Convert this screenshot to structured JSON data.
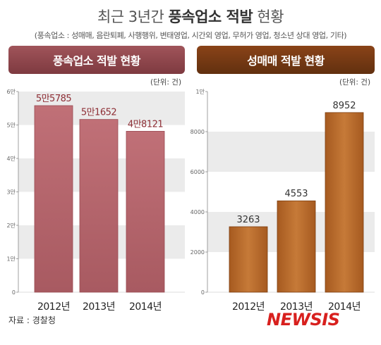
{
  "header": {
    "title_prefix": "최근 3년간",
    "title_strong": "풍속업소 적발",
    "title_suffix": "현황",
    "subtitle": "(풍속업소 : 성매매, 음란퇴폐, 사행행위, 변태영업, 시간외 영업, 무허가 영업, 청소년 상대 영업, 기타)"
  },
  "panels": {
    "left_title": "풍속업소 적발 현황",
    "right_title": "성매매 적발 현황",
    "unit": "(단위: 건)"
  },
  "source": "자료 : 경찰청",
  "logo": "NEWSIS",
  "chart_data": [
    {
      "type": "bar",
      "title": "풍속업소 적발 현황",
      "categories": [
        "2012년",
        "2013년",
        "2014년"
      ],
      "values": [
        55785,
        51652,
        48121
      ],
      "data_labels": [
        "5만5785",
        "5만1652",
        "4만8121"
      ],
      "ylim": [
        0,
        60000
      ],
      "yticks": [
        0,
        10000,
        20000,
        30000,
        40000,
        50000,
        60000
      ],
      "ytick_labels": [
        "0",
        "1만",
        "2만",
        "3만",
        "4만",
        "5만",
        "6만"
      ],
      "unit": "(단위: 건)",
      "bar_color": "#b9686f",
      "grid": "horizontal bands"
    },
    {
      "type": "bar",
      "title": "성매매 적발 현황",
      "categories": [
        "2012년",
        "2013년",
        "2014년"
      ],
      "values": [
        3263,
        4553,
        8952
      ],
      "data_labels": [
        "3263",
        "4553",
        "8952"
      ],
      "ylim": [
        0,
        10000
      ],
      "yticks": [
        0,
        2000,
        4000,
        6000,
        8000,
        10000
      ],
      "ytick_labels": [
        "0",
        "2000",
        "4000",
        "6000",
        "8000",
        "1만"
      ],
      "unit": "(단위: 건)",
      "bar_color": "#b86a2c",
      "grid": "horizontal bands"
    }
  ]
}
